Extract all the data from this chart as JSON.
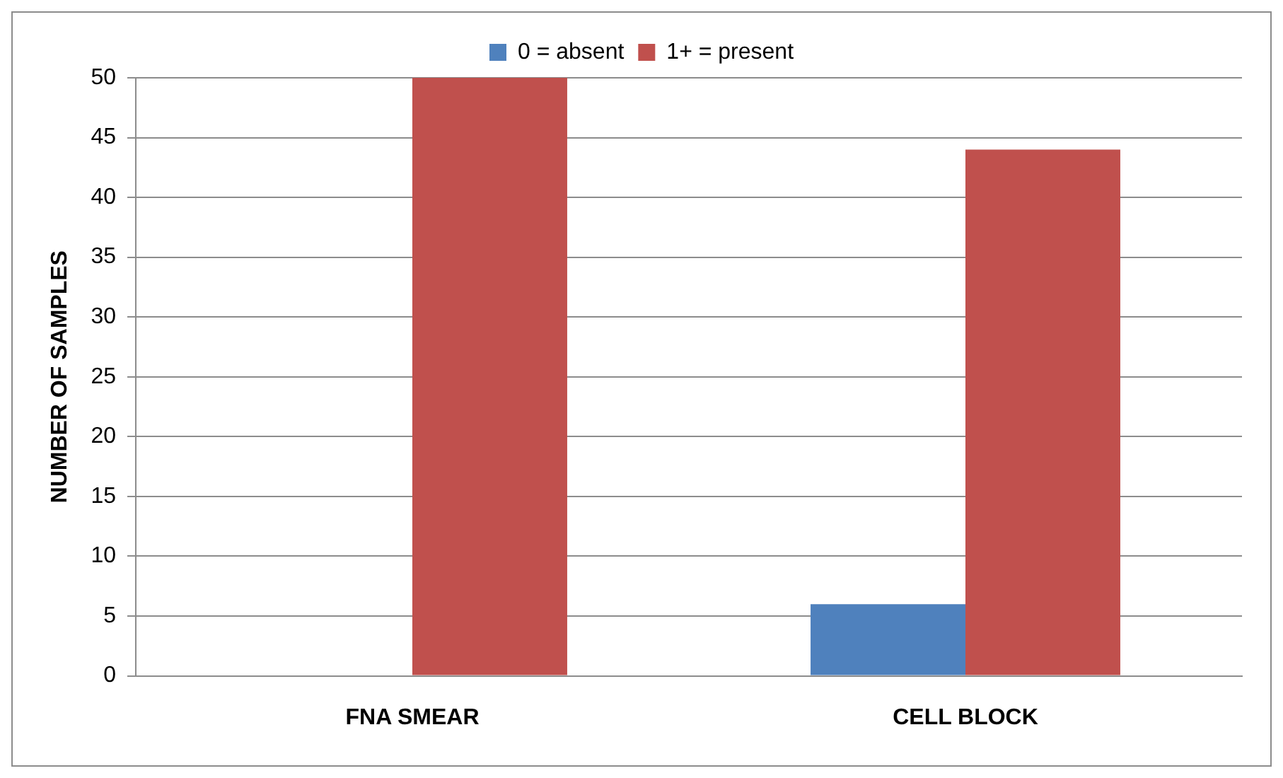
{
  "chart_data": {
    "type": "bar",
    "categories": [
      "FNA SMEAR",
      "CELL BLOCK"
    ],
    "series": [
      {
        "name": "0 = absent",
        "color": "#4f81bd",
        "values": [
          0,
          6
        ]
      },
      {
        "name": "1+ = present",
        "color": "#c0504d",
        "values": [
          50,
          44
        ]
      }
    ],
    "ylabel": "NUMBER OF SAMPLES",
    "ylim": [
      0,
      50
    ],
    "yticks": [
      0,
      5,
      10,
      15,
      20,
      25,
      30,
      35,
      40,
      45,
      50
    ],
    "grid": "y",
    "legend": "top"
  }
}
